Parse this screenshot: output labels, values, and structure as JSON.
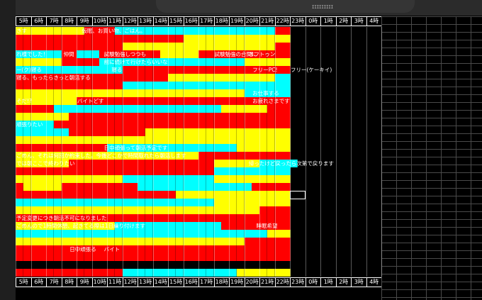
{
  "window": {
    "title_fragment": "ɪɪɪɪɪɪɪɪɪ"
  },
  "palette": {
    "red": "#ff0000",
    "yellow": "#ffff00",
    "cyan": "#00ffff",
    "black": "#000000"
  },
  "hour_labels": [
    "5時",
    "6時",
    "7時",
    "8時",
    "9時",
    "10時",
    "11時",
    "12時",
    "13時",
    "14時",
    "15時",
    "16時",
    "17時",
    "18時",
    "19時",
    "20時",
    "21時",
    "22時",
    "23時",
    "0時",
    "1時",
    "2時",
    "3時",
    "4時"
  ],
  "rows": [
    {
      "seq": "yyyyyyyyyrrrrcccccccccccccccccccccrr",
      "texts": [
        {
          "col": 0,
          "text": "きす"
        },
        {
          "col": 8.6,
          "text": "仮眠、お買い物、ごはん。"
        }
      ]
    },
    {
      "seq": "rrrrrrrrrrrrrrrrrrrrrryyyyyyyyyyyyyy",
      "texts": []
    },
    {
      "seq": "rrrrrrrrrrrrrryyyyyyyyyyyyyyyyyyyyrr",
      "texts": []
    },
    {
      "seq": "ccccccrrcccrrrrrrrryyyyyrrrrrrrrrrrr",
      "texts": [
        {
          "col": 0,
          "text": "れ様でした！"
        },
        {
          "col": 6.2,
          "text": "仲間"
        },
        {
          "col": 11.5,
          "text": "試験勉強しつつも"
        },
        {
          "col": 26,
          "text": "試験勉強の合間に"
        },
        {
          "col": 30.5,
          "text": "オフトゥン"
        }
      ]
    },
    {
      "seq": "yyyyyyrrrrrcccccccccccccccccccyyyyyy",
      "texts": [
        {
          "col": 11.5,
          "text": "前に続けて行けたらいいな"
        }
      ]
    },
    {
      "seq": "ccccccccccccccrrrrrrrrrrrrrrrrrrrrrr",
      "texts": [
        {
          "col": 0,
          "text": "ー(ク)寝る"
        },
        {
          "col": 12.5,
          "text": "寝る"
        },
        {
          "col": 31,
          "text": "フリーPC!"
        },
        {
          "col": 36,
          "text": "フリー(ケーキイ)"
        }
      ]
    },
    {
      "seq": "rrrrrrrrrrrrrrrrrrrryyyyyyyyyyyyyycc",
      "texts": [
        {
          "col": 0,
          "text": "寝る、もったらきっと朝活する"
        }
      ]
    },
    {
      "seq": "rrrrrrrrrrrrrrcccccccccccccccccccccc",
      "texts": []
    },
    {
      "seq": "yyyyyyyyyyyyyyyyyyyyyyyyyyyyyycccccc",
      "texts": [
        {
          "col": 31,
          "text": "お仕事する"
        }
      ]
    },
    {
      "seq": "yyyyyyyyrrrrrrrrrrrrrrrrrrrrrrrrrrrr",
      "texts": [
        {
          "col": 0,
          "text": "そだ!?"
        },
        {
          "col": 8,
          "text": "バイトどす"
        },
        {
          "col": 31,
          "text": "お疲れさまです"
        }
      ]
    },
    {
      "seq": "rrrrrccccccccccccccccccccccyyyyyyrrr",
      "texts": []
    },
    {
      "seq": "yyyyyyyrrrrrrrrrrrrrrrrrrrrrrrrrrrrr",
      "texts": []
    },
    {
      "seq": "cccccrrrrrrrrrrrrrrrrrrrrrrrrrrrrrrr",
      "texts": [
        {
          "col": 0,
          "text": "頑張りたい"
        }
      ]
    },
    {
      "seq": "cccccccrrrrrrrrrryyyyyyyyyyyyyyyyyyy",
      "texts": []
    },
    {
      "seq": "yyyyyyyyyyyyyyyyyyyyyyyyyyyyyyyyyyyy",
      "texts": []
    },
    {
      "seq": "rrrrrrrrrrrrcccccccccccccccccyyyyyyy",
      "texts": [
        {
          "col": 11.5,
          "text": "日中頑張って朝活予定です"
        }
      ]
    },
    {
      "seq": "yyyyyyyyyyyyyyyyyyyyyyyyrrrrrrrrrrrr",
      "texts": [
        {
          "col": 0,
          "text": "ごめん、それは何回か約束した。今後どこかで時間取れたら朝活します"
        }
      ]
    },
    {
      "seq": "yyyyyyyrrrrrrrrrrrrrrrrrrryyyyyyccccc",
      "texts": [
        {
          "col": 0,
          "text": "では朝ここで終わりたい"
        },
        {
          "col": 30.5,
          "text": "帰ったけど戻ったら次第で戻ります"
        }
      ]
    },
    {
      "seq": "rrrrrrrrrrrrrrrrrrrrrrrrrrcccccccccc",
      "texts": []
    },
    {
      "seq": "yyyyyyyyyyyyyyccccccccccccyyyyyyyyyy",
      "texts": []
    },
    {
      "seq": "ryyyyyrrrrrrrrrrcccccccccccccccrrrrr",
      "texts": []
    },
    {
      "seq": "rrrrrrrrrrrrrrrrrrrrryyyyyyyyyyyyyyy",
      "texts": []
    },
    {
      "seq": "ccccccccccccccccccccccccccyyyyyyyyyy",
      "texts": []
    },
    {
      "seq": "yyyyyyyyyyyyyyyyyyyyyyyyyyyyyyyyrrrr",
      "texts": []
    },
    {
      "seq": "rrrrrrrrrrrrrrrrrrrrrrrrrrrrrrrrrrrr",
      "texts": [
        {
          "col": 0,
          "text": "予定変更につき朝活不可になりました"
        }
      ]
    },
    {
      "seq": "yyyyyyyyyyyyyccccccccccccccrrrrrrrrr",
      "texts": [
        {
          "col": 0,
          "text": "ごめんので1時間休憩、起きてる際は1日繰り付けます"
        },
        {
          "col": 31.5,
          "text": "睡眠希望"
        }
      ]
    },
    {
      "seq": "cccccccccccccccccccccccccccccccccyyy",
      "texts": []
    },
    {
      "seq": "yyyyyyyyyyyyyyyyyyyyyyyyyyyyyyrrrrrr",
      "texts": []
    },
    {
      "seq": "rrrrrrrrrrrrrrrrrrrrrrrrrrrrrrrrrrrr",
      "texts": [
        {
          "col": 7,
          "text": "日中頑張る"
        },
        {
          "col": 11.5,
          "text": "バイト"
        }
      ]
    },
    {
      "seq": "rrrrrrrrrrrrrrrrrrrrrrrrrrrrrrrrrrrr",
      "texts": []
    },
    {
      "seq": "kkkkkkkkkkkkkkkkkkkkkkkkkkkkkkkkkkkk",
      "texts": []
    },
    {
      "seq": "rrrrrrrrrrrrrrcccccccccccccccyyyyyyy",
      "texts": []
    }
  ]
}
